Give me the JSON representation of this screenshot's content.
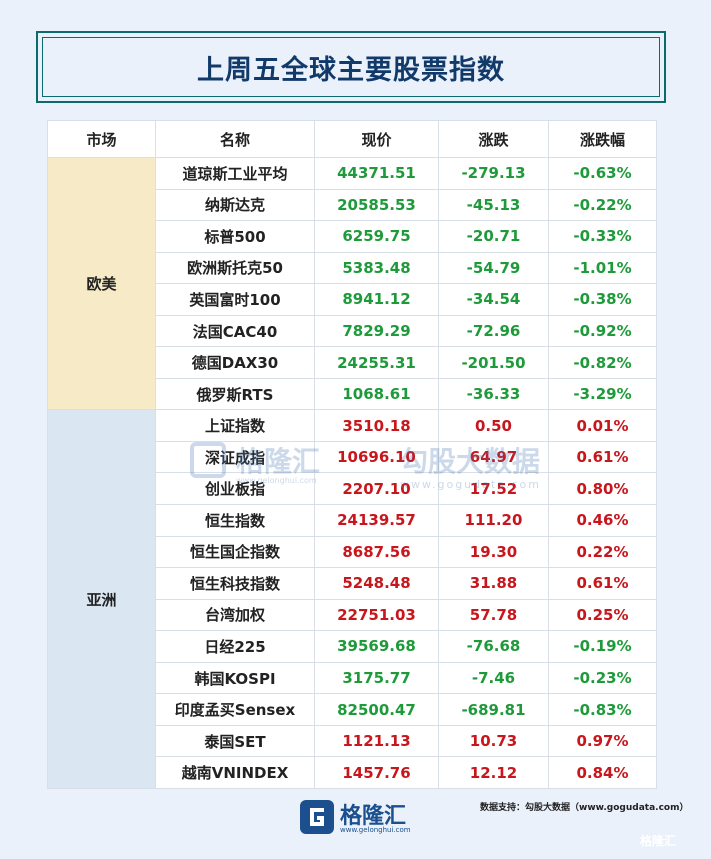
{
  "title": "上周五全球主要股票指数",
  "headers": [
    "市场",
    "名称",
    "现价",
    "涨跌",
    "涨跌幅"
  ],
  "markets": {
    "europe_america": "欧美",
    "asia": "亚洲"
  },
  "rows": [
    {
      "name": "道琼斯工业平均",
      "price": "44371.51",
      "change": "-279.13",
      "pct": "-0.63%"
    },
    {
      "name": "纳斯达克",
      "price": "20585.53",
      "change": "-45.13",
      "pct": "-0.22%"
    },
    {
      "name": "标普500",
      "price": "6259.75",
      "change": "-20.71",
      "pct": "-0.33%"
    },
    {
      "name": "欧洲斯托克50",
      "price": "5383.48",
      "change": "-54.79",
      "pct": "-1.01%"
    },
    {
      "name": "英国富时100",
      "price": "8941.12",
      "change": "-34.54",
      "pct": "-0.38%"
    },
    {
      "name": "法国CAC40",
      "price": "7829.29",
      "change": "-72.96",
      "pct": "-0.92%"
    },
    {
      "name": "德国DAX30",
      "price": "24255.31",
      "change": "-201.50",
      "pct": "-0.82%"
    },
    {
      "name": "俄罗斯RTS",
      "price": "1068.61",
      "change": "-36.33",
      "pct": "-3.29%"
    },
    {
      "name": "上证指数",
      "price": "3510.18",
      "change": "0.50",
      "pct": "0.01%"
    },
    {
      "name": "深证成指",
      "price": "10696.10",
      "change": "64.97",
      "pct": "0.61%"
    },
    {
      "name": "创业板指",
      "price": "2207.10",
      "change": "17.52",
      "pct": "0.80%"
    },
    {
      "name": "恒生指数",
      "price": "24139.57",
      "change": "111.20",
      "pct": "0.46%"
    },
    {
      "name": "恒生国企指数",
      "price": "8687.56",
      "change": "19.30",
      "pct": "0.22%"
    },
    {
      "name": "恒生科技指数",
      "price": "5248.48",
      "change": "31.88",
      "pct": "0.61%"
    },
    {
      "name": "台湾加权",
      "price": "22751.03",
      "change": "57.78",
      "pct": "0.25%"
    },
    {
      "name": "日经225",
      "price": "39569.68",
      "change": "-76.68",
      "pct": "-0.19%"
    },
    {
      "name": "韩国KOSPI",
      "price": "3175.77",
      "change": "-7.46",
      "pct": "-0.23%"
    },
    {
      "name": "印度孟买Sensex",
      "price": "82500.47",
      "change": "-689.81",
      "pct": "-0.83%"
    },
    {
      "name": "泰国SET",
      "price": "1121.13",
      "change": "10.73",
      "pct": "0.97%"
    },
    {
      "name": "越南VNINDEX",
      "price": "1457.76",
      "change": "12.12",
      "pct": "0.84%"
    }
  ],
  "colors": {
    "up": "#c8161d",
    "down": "#1e9a3a",
    "europe_bg": "#f6ebc6",
    "asia_bg": "#dbe6f3"
  },
  "watermark": {
    "brand": "格隆汇",
    "url1": "www.gelonghui.com",
    "brand2": "勾股大数据",
    "url2": "www.gogudata.com"
  },
  "footer": {
    "logo_text": "格隆汇",
    "logo_url": "www.gelonghui.com",
    "source": "数据支持：勾股大数据（www.gogudata.com）",
    "corner": "格隆汇"
  }
}
